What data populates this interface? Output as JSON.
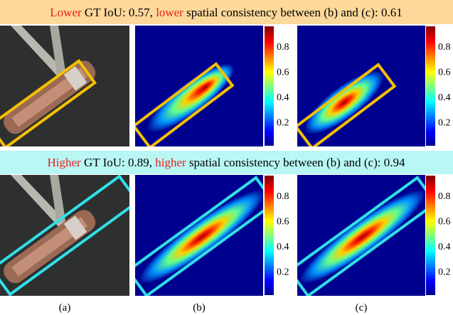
{
  "rows": [
    {
      "header": [
        "Lower",
        " GT IoU: 0.57, ",
        "lower",
        " spatial consistency between (b) and (c): 0.61"
      ]
    },
    {
      "header": [
        "Higher",
        " GT IoU: 0.89, ",
        "higher",
        " spatial consistency between (b) and (c): 0.94"
      ]
    }
  ],
  "colorbar_ticks": [
    "0.8",
    "0.6",
    "0.4",
    "0.2"
  ],
  "captions": [
    "(a)",
    "(b)",
    "(c)"
  ]
}
